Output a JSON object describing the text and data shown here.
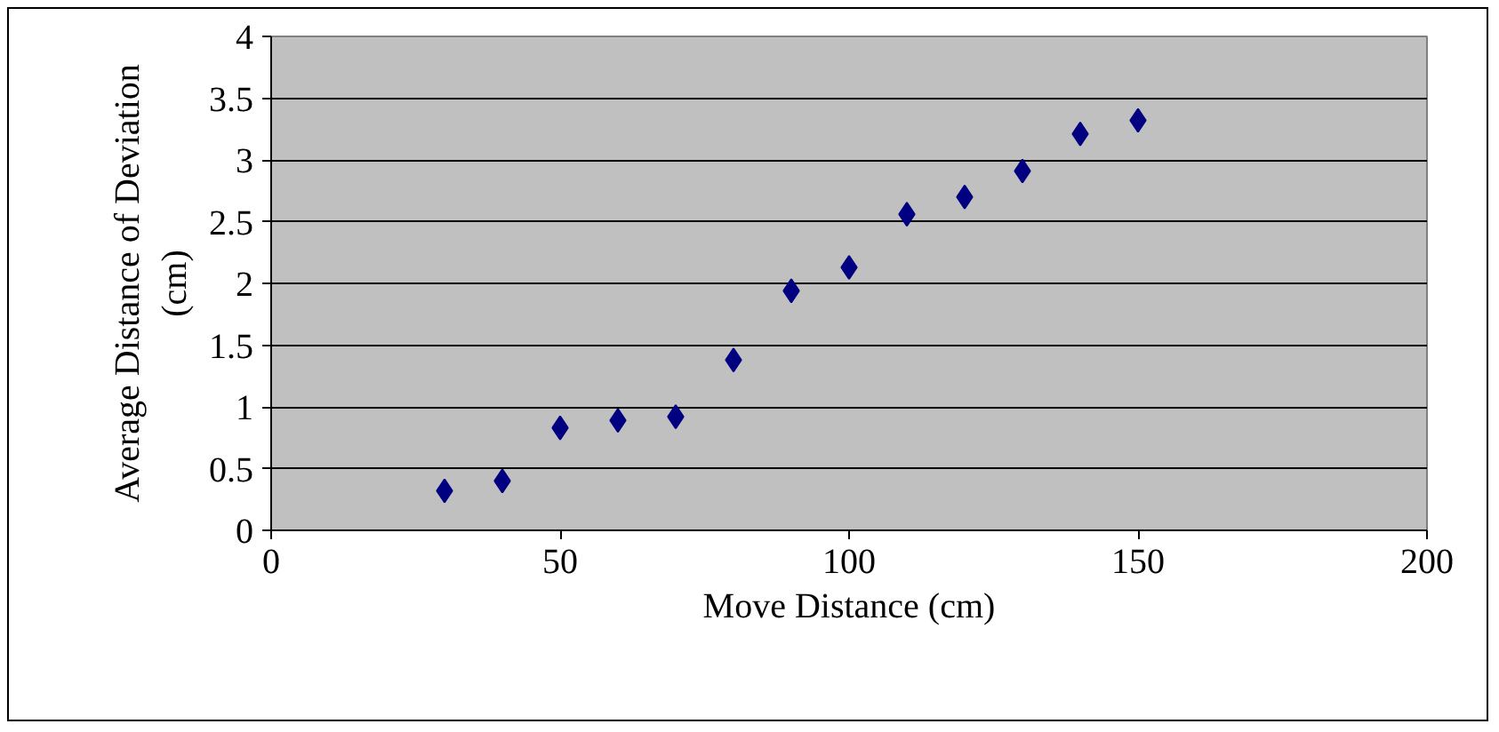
{
  "chart_data": {
    "type": "scatter",
    "xlabel": "Move Distance (cm)",
    "ylabel": "Average Distance of Deviation\n(cm)",
    "x": [
      30,
      40,
      50,
      60,
      70,
      80,
      90,
      100,
      110,
      120,
      130,
      140,
      150
    ],
    "series": [
      {
        "color": "#000080",
        "values": [
          0.32,
          0.4,
          0.83,
          0.89,
          0.92,
          1.38,
          1.94,
          2.13,
          2.56,
          2.7,
          2.91,
          3.21,
          3.32
        ]
      }
    ],
    "xlim": [
      0,
      200
    ],
    "xticks": [
      0,
      50,
      100,
      150,
      200
    ],
    "ylim": [
      0,
      4
    ],
    "yticks": [
      0,
      0.5,
      1,
      1.5,
      2,
      2.5,
      3,
      3.5,
      4
    ],
    "grid": "y",
    "marker": "diamond"
  }
}
